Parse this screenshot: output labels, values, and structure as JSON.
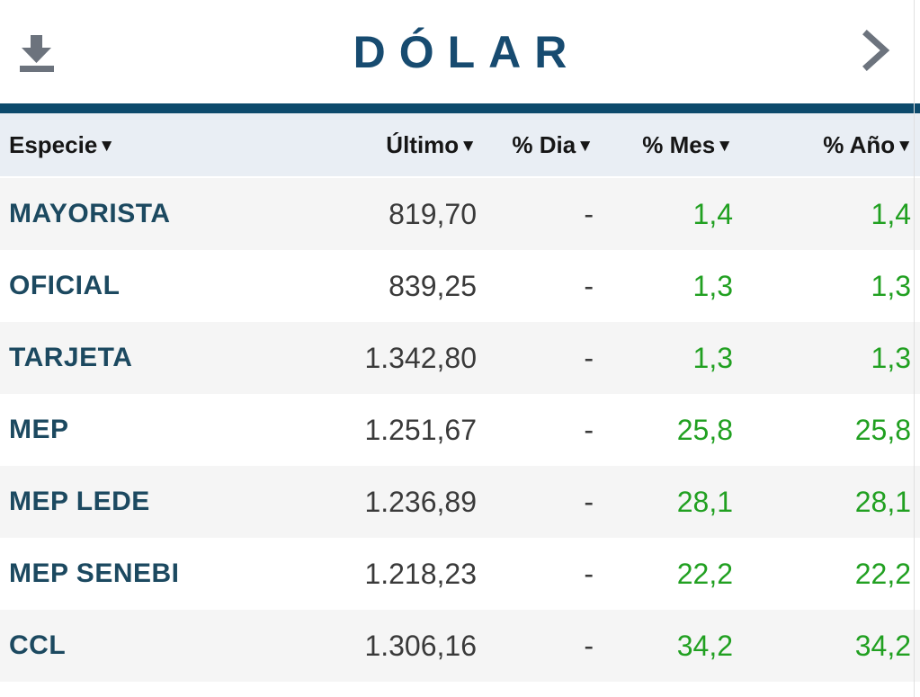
{
  "card": {
    "title": "DÓLAR",
    "download_icon": "download-icon",
    "next_icon": "chevron-right-icon"
  },
  "table": {
    "columns": [
      {
        "key": "especie",
        "label": "Especie",
        "sort_icon": "▼"
      },
      {
        "key": "ultimo",
        "label": "Último",
        "sort_icon": "▼"
      },
      {
        "key": "dia",
        "label": "% Dia",
        "sort_icon": "▼"
      },
      {
        "key": "mes",
        "label": "% Mes",
        "sort_icon": "▼"
      },
      {
        "key": "anio",
        "label": "% Año",
        "sort_icon": "▼"
      }
    ],
    "rows": [
      {
        "especie": "MAYORISTA",
        "ultimo": "819,70",
        "dia": "-",
        "mes": "1,4",
        "anio": "1,4"
      },
      {
        "especie": "OFICIAL",
        "ultimo": "839,25",
        "dia": "-",
        "mes": "1,3",
        "anio": "1,3"
      },
      {
        "especie": "TARJETA",
        "ultimo": "1.342,80",
        "dia": "-",
        "mes": "1,3",
        "anio": "1,3"
      },
      {
        "especie": "MEP",
        "ultimo": "1.251,67",
        "dia": "-",
        "mes": "25,8",
        "anio": "25,8"
      },
      {
        "especie": "MEP LEDE",
        "ultimo": "1.236,89",
        "dia": "-",
        "mes": "28,1",
        "anio": "28,1"
      },
      {
        "especie": "MEP SENEBI",
        "ultimo": "1.218,23",
        "dia": "-",
        "mes": "22,2",
        "anio": "22,2"
      },
      {
        "especie": "CCL",
        "ultimo": "1.306,16",
        "dia": "-",
        "mes": "34,2",
        "anio": "34,2"
      }
    ]
  },
  "colors": {
    "title_navy": "#174b70",
    "label_navy": "#1c4960",
    "divider_blue": "#0d4a6c",
    "header_row_bg": "#e9eef4",
    "zebra_gray": "#f5f5f5",
    "value_gray": "#3a3a3a",
    "positive_green": "#21a021",
    "icon_gray": "#6c737d"
  }
}
